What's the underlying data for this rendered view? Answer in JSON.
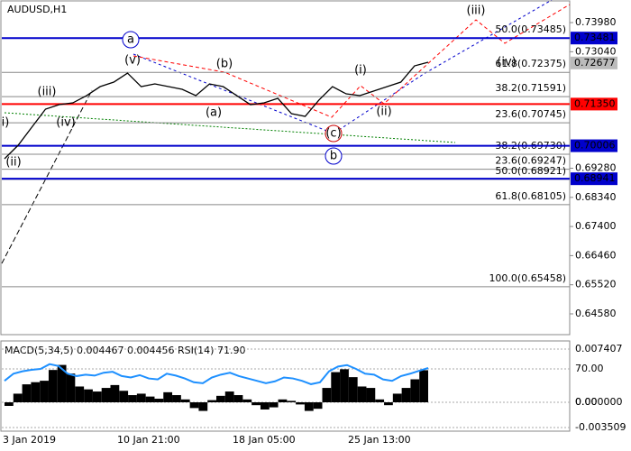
{
  "chart_data": [
    {
      "type": "line",
      "title": "AUDUSD,H1",
      "color": "#000000",
      "values": [
        0.69586,
        0.70022,
        0.70604,
        0.71186,
        0.71332,
        0.7139,
        0.71623,
        0.71914,
        0.72059,
        0.7235,
        0.71914,
        0.72001,
        0.71914,
        0.71827,
        0.71623,
        0.72001,
        0.71914,
        0.71623,
        0.71332,
        0.7139,
        0.71536,
        0.71041,
        0.70954,
        0.71477,
        0.71914,
        0.71681,
        0.71623,
        0.71768,
        0.71914,
        0.72059,
        0.72583,
        0.727
      ],
      "ylim": [
        0.6391,
        0.7468
      ],
      "yticks": [
        {
          "value": 0.7398,
          "label": "0.73980"
        },
        {
          "value": 0.7304,
          "label": "0.73040"
        },
        {
          "value": 0.6928,
          "label": "0.69280"
        },
        {
          "value": 0.6834,
          "label": "0.68340"
        },
        {
          "value": 0.674,
          "label": "0.67400"
        },
        {
          "value": 0.6646,
          "label": "0.66460"
        },
        {
          "value": 0.6552,
          "label": "0.65520"
        },
        {
          "value": 0.6458,
          "label": "0.64580"
        }
      ],
      "levels": [
        {
          "value": 0.73481,
          "color": "#0000cc"
        },
        {
          "value": {
            "value": 0.7135,
            "label": "0.71350"
          },
          "color": "#ff0000"
        },
        {
          "value": 0.70006,
          "color": "#0000cc"
        },
        {
          "value": 0.68941,
          "color": "#0000cc"
        }
      ],
      "current_price": 0.72677,
      "fib_levels": [
        {
          "value": 0.73485,
          "label": "50.0(0.73485)"
        },
        {
          "value": 0.72375,
          "label": "61.8(0.72375)"
        },
        {
          "value": 0.71591,
          "label": "38.2(0.71591)"
        },
        {
          "value": 0.70745,
          "label": "23.6(0.70745)"
        },
        {
          "value": 0.6973,
          "label": "38.2(0.69730)"
        },
        {
          "value": 0.69247,
          "label": "23.6(0.69247)"
        },
        {
          "value": 0.68921,
          "label": "50.0(0.68921)"
        },
        {
          "value": 0.68105,
          "label": "61.8(0.68105)"
        },
        {
          "value": 0.65458,
          "label": "100.0(0.65458)"
        }
      ],
      "annotations": [
        {
          "text": "(iii)",
          "color": "#cc0000"
        },
        {
          "text": "(v)",
          "color": "#cc0000"
        },
        {
          "text": "(b)",
          "color": "#cc0000"
        },
        {
          "text": "(a)",
          "color": "#cc0000"
        },
        {
          "text": "(i)",
          "color": "#cc0000"
        },
        {
          "text": "(ii)",
          "color": "#cc0000"
        },
        {
          "text": "(iv)",
          "color": "#cc0000"
        },
        {
          "text": "(c)",
          "color": "#cc0000"
        },
        {
          "text": "(iii)",
          "color": "#cc0000"
        },
        {
          "text": "(iv)",
          "color": "#cc0000"
        },
        {
          "text": "i)",
          "color": "#cc0000"
        },
        {
          "text": "(ii)",
          "color": "#cc0000"
        },
        {
          "text": "a",
          "color": "#0000cc"
        },
        {
          "text": "b",
          "color": "#0000cc"
        }
      ],
      "x_labels": [
        "3 Jan 2019",
        "10 Jan 21:00",
        "18 Jan 05:00",
        "25 Jan 13:00"
      ]
    },
    {
      "type": "bar",
      "title": "MACD(5,34,5) 0.004467 0.004456 RSI(14) 71.90",
      "series": [
        {
          "type": "bar",
          "color": "#000000",
          "values": [
            -0.0005,
            0.0012,
            0.0025,
            0.0028,
            0.003,
            0.0045,
            0.0052,
            0.004,
            0.0022,
            0.0018,
            0.0015,
            0.002,
            0.0024,
            0.0016,
            0.001,
            0.0012,
            0.0008,
            0.0005,
            0.0014,
            0.001,
            0.0004,
            -0.0008,
            -0.0012,
            0.0003,
            0.0009,
            0.0015,
            0.001,
            0.0004,
            -0.0004,
            -0.001,
            -0.0007,
            0.0004,
            0.0002,
            -0.0003,
            -0.0012,
            -0.0009,
            0.002,
            0.0042,
            0.0046,
            0.0035,
            0.0022,
            0.002,
            0.0004,
            -0.0004,
            0.0012,
            0.002,
            0.0032,
            0.004467
          ]
        },
        {
          "type": "line",
          "axis": "y2",
          "color": "#1e90ff",
          "values": [
            45,
            60,
            65,
            68,
            70,
            80,
            76,
            60,
            55,
            58,
            56,
            62,
            64,
            55,
            52,
            57,
            50,
            48,
            60,
            56,
            50,
            42,
            40,
            52,
            58,
            62,
            55,
            50,
            45,
            40,
            44,
            52,
            50,
            45,
            38,
            42,
            65,
            75,
            78,
            70,
            60,
            58,
            48,
            45,
            55,
            60,
            66,
            71.9
          ]
        }
      ],
      "ylim": [
        -0.004016,
        0.008537
      ],
      "yticks": [
        0.007407,
        {
          "value": 0,
          "label": "0.000000"
        },
        -0.003509
      ],
      "y2lim": [
        -60.5,
        128.6
      ],
      "y2ticks": [
        {
          "value": 70,
          "label": "70.00"
        },
        {
          "value": 0,
          "label": "0.00"
        }
      ]
    }
  ]
}
